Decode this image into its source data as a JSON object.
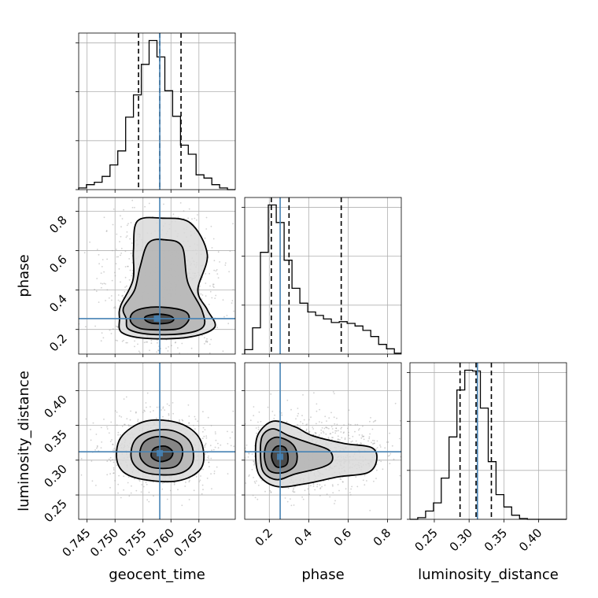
{
  "chart_data": {
    "type": "scatter",
    "subtype": "corner-plot",
    "parameters": [
      {
        "name": "geocent_time",
        "label": "geocent_time",
        "range": [
          0.7435,
          0.7715
        ],
        "ticks": [
          0.745,
          0.75,
          0.755,
          0.76,
          0.765
        ],
        "tick_labels": [
          "0.745",
          "0.750",
          "0.755",
          "0.760",
          "0.765"
        ],
        "truth": 0.758,
        "quantiles": [
          0.7542,
          0.758,
          0.7618
        ],
        "histogram": {
          "bin_edges": [
            0.7435,
            0.7449,
            0.7463,
            0.7477,
            0.7491,
            0.7505,
            0.7519,
            0.7533,
            0.7547,
            0.7561,
            0.7575,
            0.7589,
            0.7603,
            0.7617,
            0.7631,
            0.7645,
            0.7659,
            0.7673,
            0.7687,
            0.7701,
            0.7715
          ],
          "heights": [
            2,
            6,
            9,
            16,
            30,
            47,
            88,
            115,
            152,
            181,
            161,
            120,
            89,
            54,
            43,
            18,
            14,
            6,
            2,
            0
          ]
        }
      },
      {
        "name": "phase",
        "label": "phase",
        "range": [
          0.075,
          0.87
        ],
        "ticks": [
          0.2,
          0.4,
          0.6,
          0.8
        ],
        "tick_labels": [
          "0.2",
          "0.4",
          "0.6",
          "0.8"
        ],
        "truth": 0.255,
        "quantiles": [
          0.21,
          0.3,
          0.565
        ],
        "histogram": {
          "bin_edges": [
            0.075,
            0.115,
            0.155,
            0.195,
            0.235,
            0.275,
            0.315,
            0.355,
            0.395,
            0.435,
            0.475,
            0.515,
            0.555,
            0.595,
            0.635,
            0.675,
            0.715,
            0.755,
            0.795,
            0.835,
            0.87
          ],
          "heights": [
            5,
            30,
            116,
            170,
            150,
            107,
            75,
            58,
            48,
            44,
            40,
            36,
            37,
            35,
            32,
            27,
            20,
            11,
            6,
            1
          ]
        }
      },
      {
        "name": "luminosity_distance",
        "label": "luminosity_distance",
        "range": [
          0.215,
          0.44
        ],
        "ticks": [
          0.25,
          0.3,
          0.35,
          0.4
        ],
        "tick_labels": [
          "0.25",
          "0.30",
          "0.35",
          "0.40"
        ],
        "truth": 0.312,
        "quantiles": [
          0.287,
          0.31,
          0.332
        ],
        "histogram": {
          "bin_edges": [
            0.215,
            0.2262,
            0.2375,
            0.2488,
            0.26,
            0.2712,
            0.2825,
            0.2938,
            0.305,
            0.3162,
            0.3275,
            0.3387,
            0.35,
            0.3612,
            0.3725,
            0.3838,
            0.395,
            0.4062,
            0.4175,
            0.4288,
            0.44
          ],
          "heights": [
            0,
            2,
            10,
            20,
            50,
            100,
            157,
            181,
            180,
            135,
            70,
            30,
            15,
            5,
            1,
            0,
            0,
            0,
            0,
            0
          ]
        }
      }
    ],
    "truths": {
      "geocent_time": 0.758,
      "phase": 0.255,
      "luminosity_distance": 0.312
    },
    "pair_contours": [
      {
        "x": "geocent_time",
        "y": "phase",
        "peak": [
          0.7575,
          0.255
        ],
        "levels": [
          [
            [
              0.7555,
              0.245
            ],
            [
              0.757,
              0.23
            ],
            [
              0.7595,
              0.233
            ],
            [
              0.7605,
              0.25
            ],
            [
              0.7598,
              0.27
            ],
            [
              0.7575,
              0.278
            ],
            [
              0.7555,
              0.266
            ]
          ],
          [
            [
              0.7528,
              0.24
            ],
            [
              0.7545,
              0.205
            ],
            [
              0.758,
              0.198
            ],
            [
              0.7615,
              0.205
            ],
            [
              0.7632,
              0.25
            ],
            [
              0.7625,
              0.292
            ],
            [
              0.759,
              0.312
            ],
            [
              0.7555,
              0.31
            ],
            [
              0.7532,
              0.285
            ]
          ],
          [
            [
              0.752,
              0.255
            ],
            [
              0.7525,
              0.2
            ],
            [
              0.7565,
              0.175
            ],
            [
              0.7625,
              0.18
            ],
            [
              0.7658,
              0.215
            ],
            [
              0.7655,
              0.3
            ],
            [
              0.763,
              0.44
            ],
            [
              0.762,
              0.62
            ],
            [
              0.759,
              0.655
            ],
            [
              0.756,
              0.64
            ],
            [
              0.7545,
              0.52
            ],
            [
              0.7535,
              0.4
            ],
            [
              0.7515,
              0.31
            ]
          ],
          [
            [
              0.7508,
              0.255
            ],
            [
              0.7512,
              0.185
            ],
            [
              0.7555,
              0.155
            ],
            [
              0.763,
              0.16
            ],
            [
              0.7678,
              0.21
            ],
            [
              0.7665,
              0.3
            ],
            [
              0.7648,
              0.4
            ],
            [
              0.7665,
              0.58
            ],
            [
              0.7635,
              0.74
            ],
            [
              0.7585,
              0.765
            ],
            [
              0.754,
              0.75
            ],
            [
              0.7533,
              0.6
            ],
            [
              0.7532,
              0.45
            ],
            [
              0.751,
              0.32
            ]
          ]
        ]
      },
      {
        "x": "geocent_time",
        "y": "luminosity_distance",
        "peak": [
          0.758,
          0.31
        ],
        "levels": [
          [
            [
              0.7565,
              0.305
            ],
            [
              0.758,
              0.298
            ],
            [
              0.7598,
              0.302
            ],
            [
              0.7603,
              0.312
            ],
            [
              0.759,
              0.32
            ],
            [
              0.757,
              0.317
            ]
          ],
          [
            [
              0.7545,
              0.305
            ],
            [
              0.7565,
              0.29
            ],
            [
              0.7605,
              0.29
            ],
            [
              0.762,
              0.305
            ],
            [
              0.7615,
              0.324
            ],
            [
              0.758,
              0.334
            ],
            [
              0.7552,
              0.326
            ]
          ],
          [
            [
              0.753,
              0.3
            ],
            [
              0.7555,
              0.282
            ],
            [
              0.761,
              0.28
            ],
            [
              0.7638,
              0.295
            ],
            [
              0.7635,
              0.325
            ],
            [
              0.7605,
              0.342
            ],
            [
              0.7565,
              0.342
            ],
            [
              0.7535,
              0.328
            ]
          ],
          [
            [
              0.7505,
              0.295
            ],
            [
              0.7535,
              0.275
            ],
            [
              0.761,
              0.27
            ],
            [
              0.7655,
              0.29
            ],
            [
              0.7652,
              0.33
            ],
            [
              0.7615,
              0.353
            ],
            [
              0.7555,
              0.356
            ],
            [
              0.751,
              0.332
            ]
          ]
        ]
      },
      {
        "x": "phase",
        "y": "luminosity_distance",
        "peak": [
          0.255,
          0.305
        ],
        "levels": [
          [
            [
              0.215,
              0.3
            ],
            [
              0.24,
              0.29
            ],
            [
              0.285,
              0.293
            ],
            [
              0.295,
              0.305
            ],
            [
              0.28,
              0.318
            ],
            [
              0.24,
              0.32
            ],
            [
              0.215,
              0.312
            ]
          ],
          [
            [
              0.175,
              0.305
            ],
            [
              0.2,
              0.285
            ],
            [
              0.27,
              0.282
            ],
            [
              0.33,
              0.292
            ],
            [
              0.34,
              0.31
            ],
            [
              0.31,
              0.325
            ],
            [
              0.24,
              0.333
            ],
            [
              0.19,
              0.325
            ]
          ],
          [
            [
              0.155,
              0.31
            ],
            [
              0.17,
              0.283
            ],
            [
              0.24,
              0.272
            ],
            [
              0.33,
              0.28
            ],
            [
              0.47,
              0.29
            ],
            [
              0.52,
              0.3
            ],
            [
              0.5,
              0.315
            ],
            [
              0.4,
              0.325
            ],
            [
              0.3,
              0.335
            ],
            [
              0.22,
              0.345
            ],
            [
              0.165,
              0.335
            ]
          ],
          [
            [
              0.13,
              0.31
            ],
            [
              0.15,
              0.278
            ],
            [
              0.24,
              0.262
            ],
            [
              0.38,
              0.266
            ],
            [
              0.55,
              0.276
            ],
            [
              0.7,
              0.282
            ],
            [
              0.745,
              0.3
            ],
            [
              0.72,
              0.318
            ],
            [
              0.58,
              0.324
            ],
            [
              0.42,
              0.335
            ],
            [
              0.33,
              0.348
            ],
            [
              0.22,
              0.356
            ],
            [
              0.145,
              0.338
            ]
          ]
        ]
      }
    ],
    "grid": true,
    "legend": "none"
  }
}
